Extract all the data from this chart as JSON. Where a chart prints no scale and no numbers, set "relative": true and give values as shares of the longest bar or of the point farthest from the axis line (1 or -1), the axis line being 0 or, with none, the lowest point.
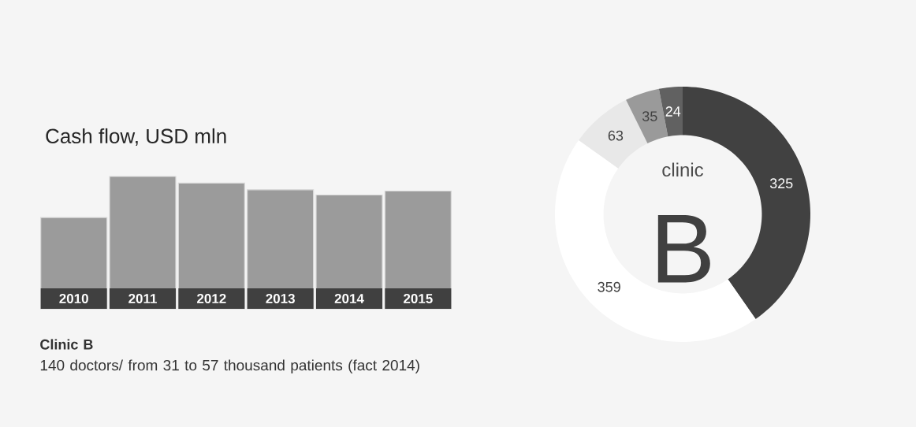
{
  "chart_data": [
    {
      "type": "bar",
      "title": "Cash flow, USD mln",
      "categories": [
        "2010",
        "2011",
        "2012",
        "2013",
        "2014",
        "2015"
      ],
      "values": [
        0.69,
        1,
        0.95,
        0.9,
        0.86,
        0.89
      ],
      "relative": true,
      "color": "#9b9b9b",
      "annotations": [
        "Clinic B",
        "140 doctors/ from 31 to 57 thousand patients (fact 2014)"
      ]
    },
    {
      "type": "donut",
      "categories": [
        null,
        null,
        null,
        null,
        null
      ],
      "values": [
        325,
        359,
        63,
        35,
        24
      ],
      "colors": [
        "#414141",
        "#ffffff",
        "#e8e8e8",
        "#9a9a9a",
        "#616161"
      ],
      "data_labels": true,
      "annotations": [
        "clinic",
        "B"
      ]
    }
  ]
}
